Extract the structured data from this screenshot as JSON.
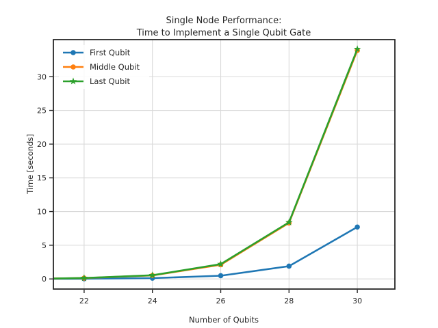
{
  "chart": {
    "title_line1": "Single Node Performance:",
    "title_line2": "Time to Implement a Single Qubit Gate"
  },
  "chart_data": {
    "type": "line",
    "title": "Single Node Performance: Time to Implement a Single Qubit Gate",
    "title_lines": [
      "Single Node Performance:",
      "Time to Implement a Single Qubit Gate"
    ],
    "xlabel": "Number of Qubits",
    "ylabel": "Time [seconds]",
    "x": [
      22,
      24,
      26,
      28,
      30
    ],
    "series": [
      {
        "name": "First Qubit",
        "color": "#1f77b4",
        "marker": "circle",
        "values": [
          0.03,
          0.12,
          0.48,
          1.9,
          7.7
        ]
      },
      {
        "name": "Middle Qubit",
        "color": "#ff7f0e",
        "marker": "circle",
        "values": [
          0.13,
          0.52,
          2.1,
          8.3,
          33.9
        ]
      },
      {
        "name": "Last Qubit",
        "color": "#2ca02c",
        "marker": "star",
        "values": [
          0.14,
          0.55,
          2.2,
          8.4,
          34.1
        ]
      }
    ],
    "xticks": [
      22,
      24,
      26,
      28,
      30
    ],
    "yticks": [
      0,
      5,
      10,
      15,
      20,
      25,
      30
    ],
    "xlim": [
      21.1,
      31.1
    ],
    "ylim": [
      -1.5,
      35.5
    ],
    "grid": true,
    "line_extends_to_left_edge": true,
    "legend_position": "upper left"
  },
  "colors": {
    "background": "#ffffff",
    "grid": "#d9d9d9",
    "frame": "#262626",
    "text": "#262626",
    "legend_bg": "#ffffff"
  }
}
